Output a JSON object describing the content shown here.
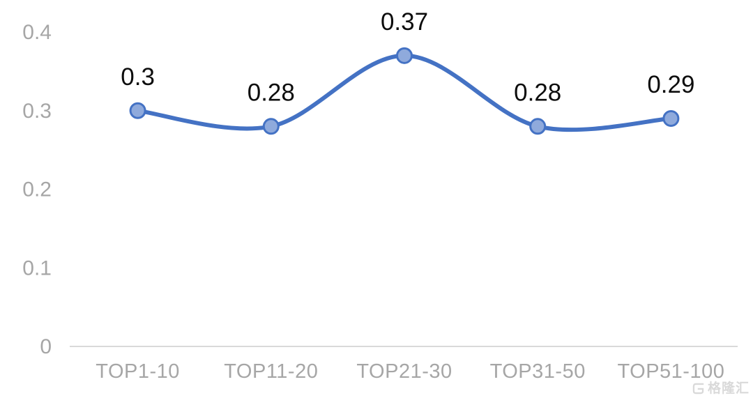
{
  "chart_data": {
    "type": "line",
    "categories": [
      "TOP1-10",
      "TOP11-20",
      "TOP21-30",
      "TOP31-50",
      "TOP51-100"
    ],
    "values": [
      0.3,
      0.28,
      0.37,
      0.28,
      0.29
    ],
    "data_labels": [
      "0.3",
      "0.28",
      "0.37",
      "0.28",
      "0.29"
    ],
    "title": "",
    "xlabel": "",
    "ylabel": "",
    "ylim": [
      0,
      0.4
    ],
    "yticks": [
      0,
      0.1,
      0.2,
      0.3,
      0.4
    ],
    "ytick_labels": [
      "0",
      "0.1",
      "0.2",
      "0.3",
      "0.4"
    ],
    "grid": false,
    "legend": false,
    "smooth": true,
    "marker": "circle",
    "colors": {
      "line": "#4472C4",
      "marker_fill": "#8FAADC",
      "marker_stroke": "#4472C4",
      "data_label": "#0d0d0d",
      "axis_text": "#a6a6a6",
      "axis_line": "#d9d9d9",
      "background": "#ffffff"
    }
  },
  "watermark": {
    "text": "格隆汇",
    "icon": "gelonghui-logo-icon",
    "color": "#d8d8d8"
  }
}
